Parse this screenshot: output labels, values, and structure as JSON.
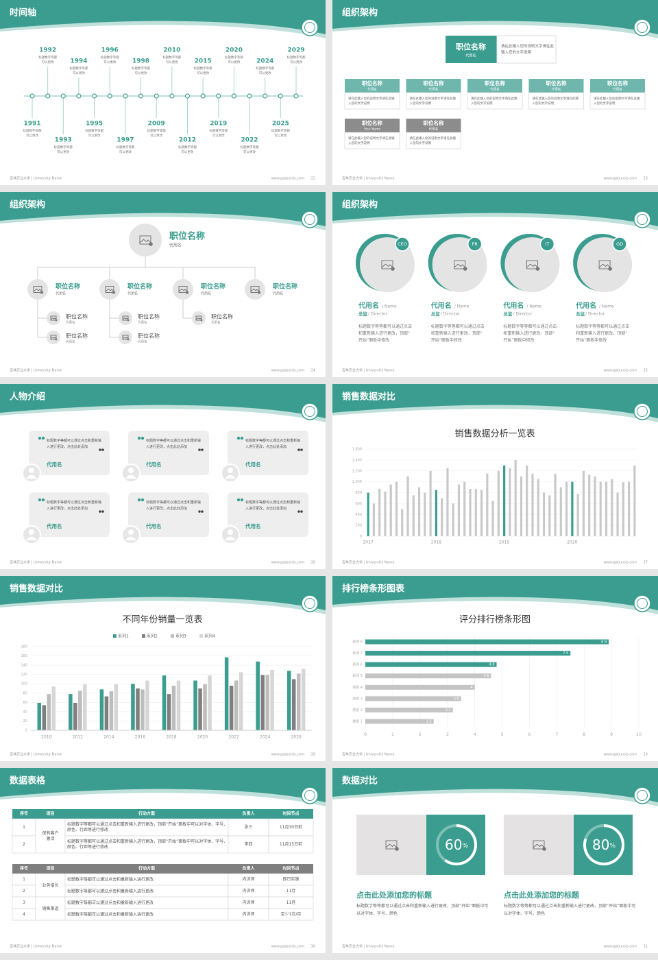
{
  "slides": [
    {
      "title": "时间轴",
      "footer": {
        "left": "吉林农业大学 | University Name",
        "url": "www.pptjunsis.com",
        "page": "22"
      },
      "timeline": [
        {
          "year": "1991",
          "text": "标题数字等都可以更改"
        },
        {
          "year": "1992",
          "text": "标题数字等都可以更改"
        },
        {
          "year": "1993",
          "text": "标题数字等都可以更改"
        },
        {
          "year": "1994",
          "text": "标题数字等都可以更改"
        },
        {
          "year": "1995",
          "text": "标题数字等都可以更改"
        },
        {
          "year": "1996",
          "text": "标题数字等都可以更改"
        },
        {
          "year": "1997",
          "text": "标题数字等都可以更改"
        },
        {
          "year": "1998",
          "text": "标题数字等都可以更改"
        },
        {
          "year": "2009",
          "text": "标题数字等都可以更改"
        },
        {
          "year": "2010",
          "text": "标题数字等都可以更改"
        },
        {
          "year": "2012",
          "text": "标题数字等都可以更改"
        },
        {
          "year": "2015",
          "text": "标题数字等都可以更改"
        },
        {
          "year": "2019",
          "text": "标题数字等都可以更改"
        },
        {
          "year": "2020",
          "text": "标题数字等都可以更改"
        },
        {
          "year": "2022",
          "text": "标题数字等都可以更改"
        },
        {
          "year": "2024",
          "text": "标题数字等都可以更改"
        },
        {
          "year": "2025",
          "text": "标题数字等都可以更改"
        },
        {
          "year": "2029",
          "text": "标题数字等都可以更改"
        }
      ]
    },
    {
      "title": "组织架构",
      "footer": {
        "left": "吉林农业大学 | University Name",
        "url": "www.pptjunsis.com",
        "page": "23"
      },
      "top": {
        "title": "职位名称",
        "name": "代用名",
        "note": "请在此输入您的说明文字请在此输入您的文字说明"
      },
      "units": [
        {
          "title": "职位名称",
          "name": "代用名",
          "text": "请在此输入您的说明文字请在此输入您的文字说明",
          "color": "#6fb7ad"
        },
        {
          "title": "职位名称",
          "name": "代用名",
          "text": "请在此输入您的说明文字请在此输入您的文字说明",
          "color": "#6fb7ad"
        },
        {
          "title": "职位名称",
          "name": "代用名",
          "text": "请在此输入您的说明文字请在此输入您的文字说明",
          "color": "#6fb7ad"
        },
        {
          "title": "职位名称",
          "name": "代用名",
          "text": "请在此输入您的说明文字请在此输入您的文字说明",
          "color": "#6fb7ad"
        },
        {
          "title": "职位名称",
          "name": "代用名",
          "text": "请在此输入您的说明文字请在此输入您的文字说明",
          "color": "#6fb7ad"
        },
        {
          "title": "职位名称",
          "name": "Your Name",
          "text": "请在此输入您的说明文字请在此输入您的文字说明",
          "color": "#8c8c8c"
        },
        {
          "title": "职位名称",
          "name": "代用名",
          "text": "请在此输入您的说明文字请在此输入您的文字说明",
          "color": "#8c8c8c"
        }
      ]
    },
    {
      "title": "组织架构",
      "footer": {
        "left": "吉林农业大学 | University Name",
        "url": "www.pptjunsis.com",
        "page": "24"
      },
      "head": {
        "title": "职位名称",
        "name": "代用名"
      },
      "branches": [
        {
          "title": "职位名称",
          "name": "代用名",
          "children": [
            {
              "title": "职位名称",
              "name": "代用名"
            },
            {
              "title": "职位名称",
              "name": "代用名"
            }
          ]
        },
        {
          "title": "职位名称",
          "name": "代用名",
          "children": [
            {
              "title": "职位名称",
              "name": "代用名"
            },
            {
              "title": "职位名称",
              "name": "代用名"
            }
          ]
        },
        {
          "title": "职位名称",
          "name": "代用名",
          "children": [
            {
              "title": "职位名称",
              "name": "代用名"
            }
          ]
        },
        {
          "title": "职位名称",
          "name": "代用名",
          "children": []
        }
      ]
    },
    {
      "title": "组织架构",
      "footer": {
        "left": "吉林农业大学 | University Name",
        "url": "www.pptjunsis.com",
        "page": "25"
      },
      "people": [
        {
          "badge": "CEO",
          "name": "代用名",
          "name_en": "/ Name",
          "role": "总监",
          "role_en": "/ Director",
          "text": "标题数字等等都可以通过点击和重新输入进行更改，顶部“开始”面板中修改"
        },
        {
          "badge": "PR",
          "name": "代用名",
          "name_en": "/ Name",
          "role": "总监",
          "role_en": "/ Director",
          "text": "标题数字等等都可以通过点击和重新输入进行更改，顶部“开始”面板中修改"
        },
        {
          "badge": "IT",
          "name": "代用名",
          "name_en": "/ Name",
          "role": "总监",
          "role_en": "/ Director",
          "text": "标题数字等等都可以通过点击和重新输入进行更改，顶部“开始”面板中修改"
        },
        {
          "badge": "GD",
          "name": "代用名",
          "name_en": "/ Name",
          "role": "总监",
          "role_en": "/ Director",
          "text": "标题数字等等都可以通过点击和重新输入进行更改，顶部“开始”面板中修改"
        }
      ]
    },
    {
      "title": "人物介绍",
      "footer": {
        "left": "吉林农业大学 | University Name",
        "url": "www.pptjunsis.com",
        "page": "26"
      },
      "quotes": [
        {
          "text": "标题数字等都可以通过点击和重新输入进行更改，点击此处添加",
          "name": "代用名"
        },
        {
          "text": "标题数字等都可以通过点击和重新输入进行更改，点击此处添加",
          "name": "代用名"
        },
        {
          "text": "标题数字等都可以通过点击和重新输入进行更改，点击此处添加",
          "name": "代用名"
        },
        {
          "text": "标题数字等都可以通过点击和重新输入进行更改，点击此处添加",
          "name": "代用名"
        },
        {
          "text": "标题数字等都可以通过点击和重新输入进行更改，点击此处添加",
          "name": "代用名"
        },
        {
          "text": "标题数字等都可以通过点击和重新输入进行更改，点击此处添加",
          "name": "代用名"
        }
      ]
    },
    {
      "title": "销售数据对比",
      "footer": {
        "left": "吉林农业大学 | University Name",
        "url": "www.pptjunsis.com",
        "page": "27"
      },
      "chart": {
        "type": "bar",
        "title": "销售数据分析一览表",
        "categories": [
          "2017",
          null,
          null,
          null,
          null,
          null,
          null,
          null,
          null,
          null,
          null,
          null,
          "2018",
          null,
          null,
          null,
          null,
          null,
          null,
          null,
          null,
          null,
          null,
          null,
          "2019",
          null,
          null,
          null,
          null,
          null,
          null,
          null,
          null,
          null,
          null,
          null,
          "2020",
          null,
          null,
          null,
          null,
          null,
          null,
          null,
          null,
          null,
          null,
          null
        ],
        "values": [
          800,
          600,
          870,
          820,
          950,
          1000,
          500,
          1100,
          750,
          900,
          800,
          1200,
          850,
          700,
          1250,
          600,
          950,
          1000,
          870,
          870,
          850,
          1150,
          650,
          1200,
          1300,
          1250,
          1400,
          1100,
          1300,
          1150,
          1050,
          800,
          750,
          1150,
          900,
          1000,
          1000,
          780,
          1200,
          1130,
          1100,
          1000,
          1000,
          1050,
          800,
          990,
          1000,
          1300
        ],
        "colors": [
          "#3a9d8f",
          "#c9c9c9",
          "#c9c9c9",
          "#c9c9c9",
          "#c9c9c9",
          "#c9c9c9",
          "#c9c9c9",
          "#c9c9c9",
          "#c9c9c9",
          "#c9c9c9",
          "#c9c9c9",
          "#c9c9c9",
          "#3a9d8f",
          "#c9c9c9",
          "#c9c9c9",
          "#c9c9c9",
          "#c9c9c9",
          "#c9c9c9",
          "#c9c9c9",
          "#c9c9c9",
          "#c9c9c9",
          "#c9c9c9",
          "#c9c9c9",
          "#c9c9c9",
          "#3a9d8f",
          "#c9c9c9",
          "#c9c9c9",
          "#c9c9c9",
          "#c9c9c9",
          "#c9c9c9",
          "#c9c9c9",
          "#c9c9c9",
          "#c9c9c9",
          "#c9c9c9",
          "#c9c9c9",
          "#c9c9c9",
          "#3a9d8f",
          "#c9c9c9",
          "#c9c9c9",
          "#c9c9c9",
          "#c9c9c9",
          "#c9c9c9",
          "#c9c9c9",
          "#c9c9c9",
          "#c9c9c9",
          "#c9c9c9",
          "#c9c9c9",
          "#c9c9c9"
        ],
        "ylim": [
          0,
          1600
        ],
        "yticks": [
          0,
          200,
          400,
          600,
          800,
          {
            "value": 1000,
            "label": "1,000"
          },
          {
            "value": 1200,
            "label": "1,200"
          },
          {
            "value": 1400,
            "label": "1,400"
          },
          {
            "value": 1600,
            "label": "1,600"
          }
        ],
        "grid": true
      }
    },
    {
      "title": "销售数据对比",
      "footer": {
        "left": "吉林农业大学 | University Name",
        "url": "www.pptjunsis.com",
        "page": "28"
      },
      "chart": {
        "type": "grouped_bar",
        "title": "不同年份销量一览表",
        "categories": [
          "2010",
          "2012",
          "2014",
          "2016",
          "2018",
          "2020",
          "2022",
          "2024",
          "2026"
        ],
        "series": [
          {
            "name": "系列1",
            "color": "#3a9d8f",
            "values": [
              59,
              78,
              88,
              100,
              118,
              107,
              157,
              148,
              128
            ]
          },
          {
            "name": "系列2",
            "color": "#7f7f7f",
            "values": [
              54,
              59,
              73,
              90,
              78,
              90,
              96,
              119,
              110
            ]
          },
          {
            "name": "系列3",
            "color": "#bdbdbd",
            "values": [
              78,
              85,
              84,
              88,
              96,
              99,
              107,
              119,
              122
            ]
          },
          {
            "name": "系列4",
            "color": "#d6d6d6",
            "values": [
              94,
              99,
              99,
              107,
              107,
              118,
              125,
              130,
              132
            ]
          }
        ],
        "ylim": [
          0,
          180
        ],
        "yticks": [
          0,
          20,
          40,
          60,
          80,
          100,
          120,
          140,
          160,
          180
        ],
        "grid": true
      }
    },
    {
      "title": "排行榜条形图表",
      "footer": {
        "left": "吉林农业大学 | University Name",
        "url": "www.pptjunsis.com",
        "page": "29"
      },
      "chart": {
        "type": "hbar",
        "title": "评分排行榜条形图",
        "categories": [
          "类别 1",
          "类别 2",
          "类别 3",
          "类别 4",
          "系列 5",
          "系列 6",
          "系列 7",
          "系列 8"
        ],
        "values": [
          2.5,
          3.2,
          3.5,
          4,
          4.6,
          4.8,
          7.5,
          8.9
        ],
        "colors": [
          "#c4c4c4",
          "#c4c4c4",
          "#c4c4c4",
          "#c4c4c4",
          "#c4c4c4",
          "#3a9d8f",
          "#3a9d8f",
          "#3a9d8f"
        ],
        "xlim": [
          0,
          10
        ],
        "xticks": [
          0,
          1,
          2,
          3,
          4,
          5,
          6,
          7,
          8,
          9,
          10
        ],
        "grid": true
      }
    },
    {
      "title": "数据表格",
      "footer": {
        "left": "吉林农业大学 | University Name",
        "url": "www.pptjunsis.com",
        "page": "30"
      },
      "tables": [
        {
          "header_color": "#3a9d8f",
          "headers": [
            "序号",
            "项目",
            "行动方案",
            "负责人",
            "时间节点"
          ],
          "rows": [
            [
              "1",
              "保有客户激活",
              "标题数字等都可以通过点击和重新输入进行更改，顶部“开始”面板中可以对字体、字号、颜色、行距等进行修改",
              "张三",
              "11月30日前"
            ],
            [
              "2",
              null,
              "标题数字等都可以通过点击和重新输入进行更改，顶部“开始”面板中可以对字体、字号、颜色、行距等进行修改",
              "李四",
              "11月15日前"
            ]
          ]
        },
        {
          "header_color": "#7f7f7f",
          "headers": [
            "序号",
            "项目",
            "行动方案",
            "负责人",
            "时间节点"
          ],
          "rows": [
            [
              "1",
              "业务增长",
              "标题数字等都可以通过点击和重新输入进行更改",
              "内训师",
              "即日实施"
            ],
            [
              "2",
              null,
              "标题数字等都可以通过点击和重新输入进行更改",
              "内训师",
              "11月"
            ],
            [
              "3",
              "销售渠道",
              "标题数字等都可以通过点击和重新输入进行更改",
              "内训师",
              "11月"
            ],
            [
              "4",
              null,
              "标题数字等都可以通过点击和重新输入进行更改",
              "内训师",
              "至少1次/月"
            ]
          ]
        }
      ]
    },
    {
      "title": "数据对比",
      "footer": {
        "left": "吉林农业大学 | University Name",
        "url": "www.pptjunsis.com",
        "page": "31"
      },
      "stats": [
        {
          "value": 60,
          "label": "60%",
          "title": "点击此处添加您的标题",
          "text": "标题数字等等都可以通过点击和重新输入进行更改，顶部“开始”面板中可以对字体、字号、颜色"
        },
        {
          "value": 80,
          "label": "80%",
          "title": "点击此处添加您的标题",
          "text": "标题数字等等都可以通过点击和重新输入进行更改，顶部“开始”面板中可以对字体、字号、颜色"
        }
      ]
    }
  ]
}
